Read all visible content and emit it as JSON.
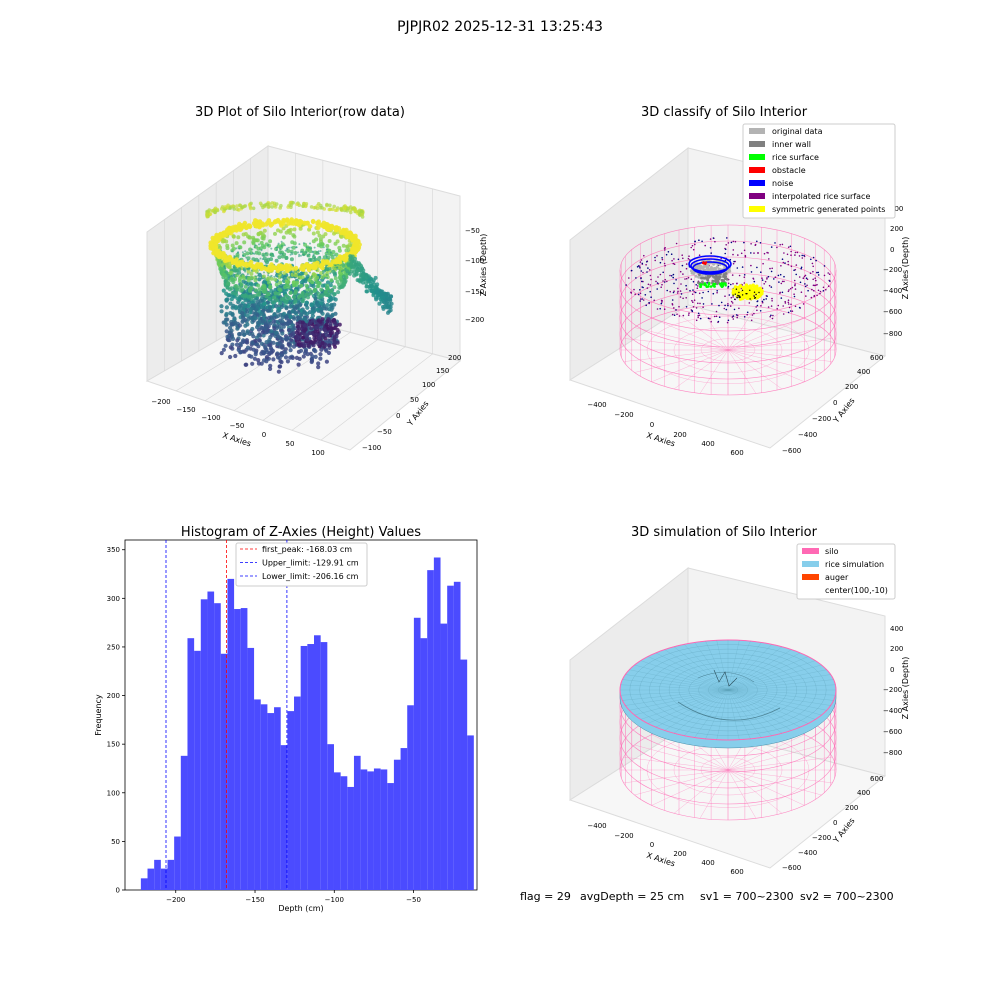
{
  "figure": {
    "suptitle": "PJPJR02 2025-12-31 13:25:43",
    "status": {
      "flag": "flag = 29",
      "avg_depth": "avgDepth = 25 cm",
      "sv1": "sv1 = 700~2300",
      "sv2": "sv2 = 700~2300"
    }
  },
  "colors": {
    "original": "#b3b3b3",
    "inner_wall": "#808080",
    "rice_surface": "#00ff00",
    "obstacle": "#ff0000",
    "noise": "#0000ff",
    "interpolated": "#800080",
    "symmetric": "#ffff00",
    "silo": "#ff69b4",
    "rice_sim": "#87ceeb",
    "auger": "#ff4500",
    "hist_bar": "#4b4bff",
    "pane": "#f2f2f2"
  },
  "chart_data": [
    {
      "type": "scatter",
      "projection": "3d",
      "title": "3D Plot of Silo Interior(row data)",
      "xlabel": "X Axies",
      "ylabel": "Y Axies",
      "zlabel": "Z Axies (Depth)",
      "x_ticks": [
        "−200",
        "−150",
        "−100",
        "−50",
        "0",
        "50",
        "100"
      ],
      "y_ticks": [
        "−100",
        "−50",
        "0",
        "50",
        "100",
        "150",
        "200"
      ],
      "z_ticks": [
        "−200",
        "−150",
        "−100",
        "−50"
      ],
      "xlim": [
        -220,
        120
      ],
      "ylim": [
        -120,
        220
      ],
      "zlim": [
        -230,
        -20
      ],
      "colormap": "viridis by depth"
    },
    {
      "type": "scatter",
      "projection": "3d",
      "title": "3D classify of Silo Interior",
      "xlabel": "X Axies",
      "ylabel": "Y Axies",
      "zlabel": "Z Axies (Depth)",
      "x_ticks": [
        "−400",
        "−200",
        "0",
        "200",
        "400",
        "600"
      ],
      "y_ticks": [
        "−600",
        "−400",
        "−200",
        "0",
        "200",
        "400",
        "600"
      ],
      "z_ticks": [
        "−800",
        "−600",
        "−400",
        "−200",
        "0",
        "200",
        "400"
      ],
      "legend_position": "top-right",
      "legend": [
        {
          "label": "original data",
          "color": "#b3b3b3"
        },
        {
          "label": "inner wall",
          "color": "#808080"
        },
        {
          "label": "rice surface",
          "color": "#00ff00"
        },
        {
          "label": "obstacle",
          "color": "#ff0000"
        },
        {
          "label": "noise",
          "color": "#0000ff"
        },
        {
          "label": "interpolated rice surface",
          "color": "#800080"
        },
        {
          "label": "symmetric generated points",
          "color": "#ffff00"
        }
      ]
    },
    {
      "type": "bar",
      "title": "Histogram of Z-Axies (Height) Values",
      "xlabel": "Depth (cm)",
      "ylabel": "Frequency",
      "xlim": [
        -232,
        -10
      ],
      "ylim": [
        0,
        360
      ],
      "x_ticks": [
        -200,
        -150,
        -100,
        -50
      ],
      "y_ticks": [
        0,
        50,
        100,
        150,
        200,
        250,
        300,
        350
      ],
      "bin_start": -222,
      "bin_width": 4.2,
      "values": [
        12,
        22,
        31,
        22,
        31,
        55,
        138,
        259,
        246,
        299,
        307,
        295,
        243,
        320,
        289,
        290,
        249,
        196,
        191,
        182,
        188,
        149,
        184,
        199,
        251,
        253,
        262,
        255,
        150,
        121,
        117,
        106,
        138,
        124,
        122,
        125,
        124,
        110,
        134,
        146,
        190,
        280,
        259,
        329,
        342,
        274,
        313,
        317,
        237,
        159
      ],
      "lines": [
        {
          "label": "first_peak: -168.03 cm",
          "x": -168.03,
          "color": "#ff0000"
        },
        {
          "label": "Upper_limit: -129.91 cm",
          "x": -129.91,
          "color": "#0000ff"
        },
        {
          "label": "Lower_limit: -206.16 cm",
          "x": -206.16,
          "color": "#0000ff"
        }
      ],
      "legend_position": "top-center"
    },
    {
      "type": "surface",
      "projection": "3d",
      "title": "3D simulation of Silo Interior",
      "xlabel": "X Axies",
      "ylabel": "Y Axies",
      "zlabel": "Z Axies (Depth)",
      "x_ticks": [
        "−400",
        "−200",
        "0",
        "200",
        "400",
        "600"
      ],
      "y_ticks": [
        "−600",
        "−400",
        "−200",
        "0",
        "200",
        "400",
        "600"
      ],
      "z_ticks": [
        "−800",
        "−600",
        "−400",
        "−200",
        "0",
        "200",
        "400"
      ],
      "legend_position": "top-right",
      "legend": [
        {
          "label": "silo",
          "color": "#ff69b4"
        },
        {
          "label": "rice simulation",
          "color": "#87ceeb"
        },
        {
          "label": "auger",
          "color": "#ff4500"
        },
        {
          "label": "center(100,-10)",
          "color": ""
        }
      ]
    }
  ]
}
